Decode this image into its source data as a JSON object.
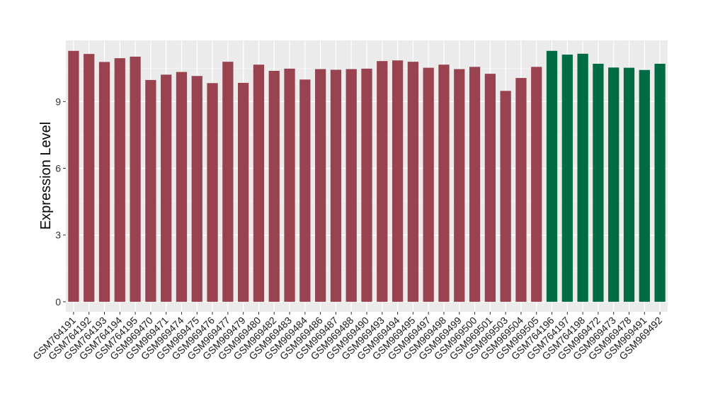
{
  "chart_data": {
    "type": "bar",
    "title": "",
    "xlabel": "",
    "ylabel": "Expression Level",
    "ylim": [
      -0.45,
      11.75
    ],
    "yticks": [
      0,
      3,
      6,
      9
    ],
    "grid": true,
    "legend": "none",
    "categories": [
      "GSM764191",
      "GSM764192",
      "GSM764193",
      "GSM764194",
      "GSM764195",
      "GSM969470",
      "GSM969471",
      "GSM969474",
      "GSM969475",
      "GSM969476",
      "GSM969477",
      "GSM969479",
      "GSM969480",
      "GSM969482",
      "GSM969483",
      "GSM969484",
      "GSM969486",
      "GSM969487",
      "GSM969488",
      "GSM969490",
      "GSM969493",
      "GSM969494",
      "GSM969495",
      "GSM969497",
      "GSM969498",
      "GSM969499",
      "GSM969500",
      "GSM969501",
      "GSM969503",
      "GSM969504",
      "GSM969505",
      "GSM764196",
      "GSM764197",
      "GSM764198",
      "GSM969472",
      "GSM969473",
      "GSM969478",
      "GSM969491",
      "GSM969492"
    ],
    "values": [
      11.28,
      11.14,
      10.78,
      10.95,
      11.02,
      9.97,
      10.21,
      10.33,
      10.15,
      9.83,
      10.79,
      9.84,
      10.66,
      10.38,
      10.48,
      9.99,
      10.46,
      10.43,
      10.46,
      10.48,
      10.82,
      10.85,
      10.79,
      10.52,
      10.66,
      10.46,
      10.56,
      10.25,
      9.48,
      10.06,
      10.56,
      11.28,
      11.11,
      11.15,
      10.7,
      10.53,
      10.52,
      10.42,
      10.7
    ],
    "groups": [
      "a",
      "a",
      "a",
      "a",
      "a",
      "a",
      "a",
      "a",
      "a",
      "a",
      "a",
      "a",
      "a",
      "a",
      "a",
      "a",
      "a",
      "a",
      "a",
      "a",
      "a",
      "a",
      "a",
      "a",
      "a",
      "a",
      "a",
      "a",
      "a",
      "a",
      "a",
      "b",
      "b",
      "b",
      "b",
      "b",
      "b",
      "b",
      "b"
    ],
    "colors": {
      "a": "#9a4350",
      "b": "#016b44",
      "panel": "#ebebeb",
      "grid_major": "#ffffff",
      "grid_minor": "#f5f5f5"
    }
  }
}
